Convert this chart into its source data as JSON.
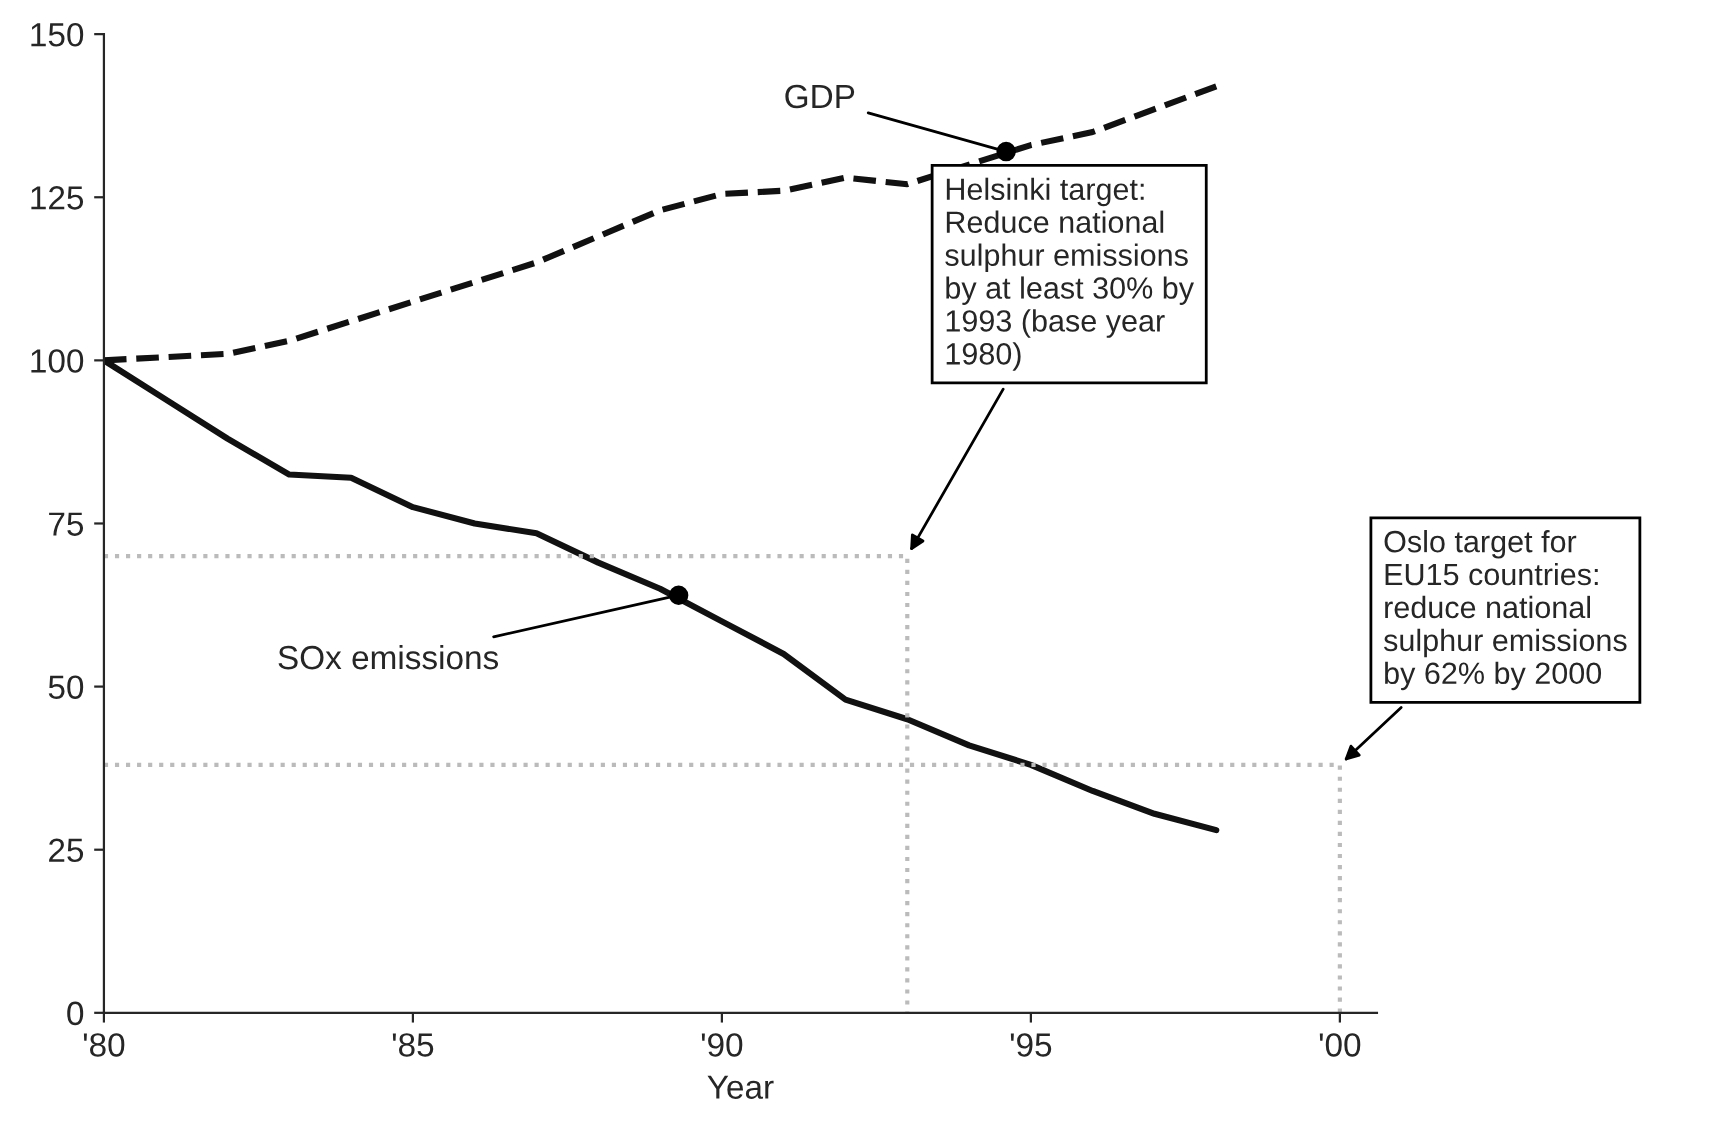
{
  "chart_data": {
    "type": "line",
    "xlabel": "Year",
    "xlim": [
      1980,
      2000.6
    ],
    "ylim": [
      0,
      150
    ],
    "xticks": [
      {
        "value": 1980,
        "label": "'80"
      },
      {
        "value": 1985,
        "label": "'85"
      },
      {
        "value": 1990,
        "label": "'90"
      },
      {
        "value": 1995,
        "label": "'95"
      },
      {
        "value": 2000,
        "label": "'00"
      }
    ],
    "yticks": [
      0,
      25,
      50,
      75,
      100,
      125,
      150
    ],
    "grid": false,
    "legend": false,
    "x": [
      1980,
      1981,
      1982,
      1983,
      1984,
      1985,
      1986,
      1987,
      1988,
      1989,
      1990,
      1991,
      1992,
      1993,
      1994,
      1995,
      1996,
      1997,
      1998
    ],
    "series": [
      {
        "color": "#111111",
        "line_style": "dashed",
        "values": [
          100,
          100.5,
          101,
          103,
          106,
          109,
          112,
          115,
          119,
          123,
          125.5,
          126,
          128,
          127,
          130,
          133,
          135,
          138.5,
          142
        ]
      },
      {
        "color": "#111111",
        "line_style": "solid",
        "values": [
          100,
          94,
          88,
          82.5,
          82,
          77.5,
          75,
          73.5,
          69,
          65,
          60,
          55,
          48,
          45,
          41,
          38,
          34,
          30.5,
          28
        ]
      },
      {
        "color": "#bbbbbb",
        "line_style": "dotted",
        "x": [
          1980,
          1993,
          1993
        ],
        "values": [
          70,
          70,
          0
        ]
      },
      {
        "color": "#bbbbbb",
        "line_style": "dotted",
        "x": [
          1980,
          2000,
          2000
        ],
        "values": [
          38,
          38,
          0
        ]
      }
    ],
    "annotations": [
      {
        "text": "GDP",
        "x": 1994.6,
        "y": 132
      },
      {
        "text": "SOx emissions",
        "x": 1989.3,
        "y": 64
      },
      {
        "text": "Helsinki target:\nReduce national\nsulphur emissions\nby at least 30% by\n1993 (base year\n1980)",
        "x": 1993,
        "y": 70
      },
      {
        "text": "Oslo target for\nEU15 countries:\nreduce national\nsulphur emissions\nby 62% by 2000",
        "x": 2000,
        "y": 38
      }
    ]
  }
}
